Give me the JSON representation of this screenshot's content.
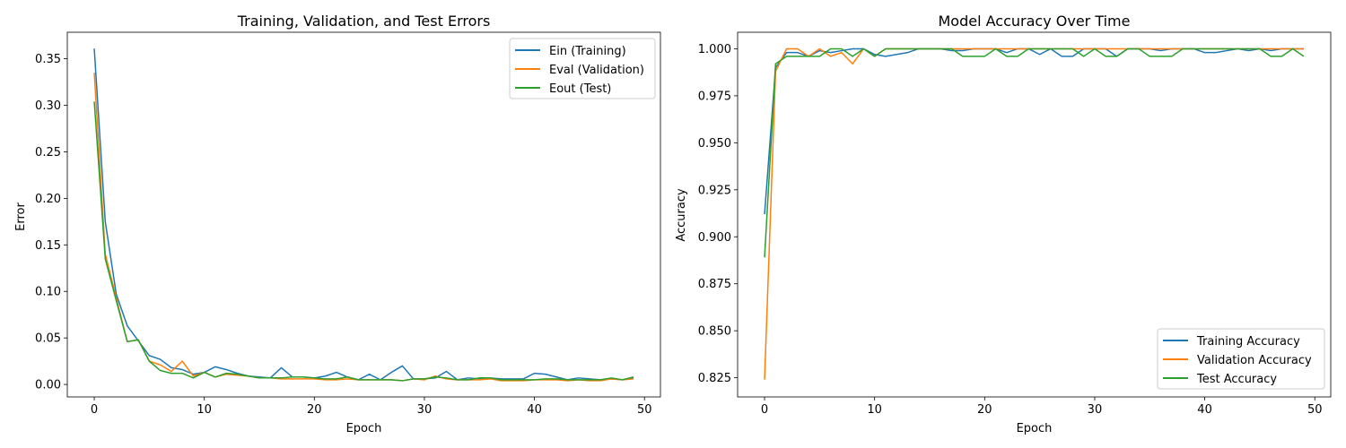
{
  "chart_data": [
    {
      "type": "line",
      "title": "Training, Validation, and Test Errors",
      "xlabel": "Epoch",
      "ylabel": "Error",
      "xlim": [
        -2.45,
        51.45
      ],
      "ylim": [
        -0.0134,
        0.3785
      ],
      "xticks": [
        0,
        10,
        20,
        30,
        40,
        50
      ],
      "xtick_labels": [
        "0",
        "10",
        "20",
        "30",
        "40",
        "50"
      ],
      "yticks": [
        0.0,
        0.05,
        0.1,
        0.15,
        0.2,
        0.25,
        0.3,
        0.35
      ],
      "ytick_labels": [
        "0.00",
        "0.05",
        "0.10",
        "0.15",
        "0.20",
        "0.25",
        "0.30",
        "0.35"
      ],
      "legend_position": "top-right",
      "grid": false,
      "x": [
        0,
        1,
        2,
        3,
        4,
        5,
        6,
        7,
        8,
        9,
        10,
        11,
        12,
        13,
        14,
        15,
        16,
        17,
        18,
        19,
        20,
        21,
        22,
        23,
        24,
        25,
        26,
        27,
        28,
        29,
        30,
        31,
        32,
        33,
        34,
        35,
        36,
        37,
        38,
        39,
        40,
        41,
        42,
        43,
        44,
        45,
        46,
        47,
        48,
        49
      ],
      "series": [
        {
          "name": "Ein (Training)",
          "color": "#1f77b4",
          "values": [
            0.361,
            0.175,
            0.097,
            0.063,
            0.047,
            0.031,
            0.027,
            0.018,
            0.016,
            0.011,
            0.013,
            0.019,
            0.016,
            0.012,
            0.009,
            0.008,
            0.007,
            0.018,
            0.008,
            0.008,
            0.007,
            0.009,
            0.013,
            0.008,
            0.005,
            0.011,
            0.005,
            0.013,
            0.02,
            0.006,
            0.006,
            0.007,
            0.014,
            0.005,
            0.007,
            0.006,
            0.007,
            0.006,
            0.006,
            0.006,
            0.012,
            0.011,
            0.008,
            0.005,
            0.007,
            0.006,
            0.005,
            0.006,
            0.005,
            0.007
          ]
        },
        {
          "name": "Eval (Validation)",
          "color": "#ff7f0e",
          "values": [
            0.335,
            0.14,
            0.093,
            0.046,
            0.048,
            0.025,
            0.021,
            0.014,
            0.025,
            0.009,
            0.013,
            0.008,
            0.011,
            0.01,
            0.009,
            0.007,
            0.007,
            0.006,
            0.006,
            0.006,
            0.006,
            0.005,
            0.005,
            0.006,
            0.005,
            0.005,
            0.005,
            0.005,
            0.004,
            0.006,
            0.005,
            0.009,
            0.006,
            0.005,
            0.005,
            0.005,
            0.006,
            0.004,
            0.004,
            0.004,
            0.005,
            0.005,
            0.005,
            0.004,
            0.005,
            0.004,
            0.004,
            0.006,
            0.005,
            0.006
          ]
        },
        {
          "name": "Eout (Test)",
          "color": "#2ca02c",
          "values": [
            0.304,
            0.135,
            0.09,
            0.046,
            0.048,
            0.025,
            0.015,
            0.012,
            0.012,
            0.007,
            0.013,
            0.008,
            0.012,
            0.011,
            0.009,
            0.007,
            0.007,
            0.007,
            0.008,
            0.008,
            0.007,
            0.006,
            0.006,
            0.008,
            0.005,
            0.005,
            0.005,
            0.005,
            0.004,
            0.006,
            0.006,
            0.008,
            0.007,
            0.005,
            0.005,
            0.007,
            0.007,
            0.005,
            0.005,
            0.005,
            0.005,
            0.006,
            0.006,
            0.005,
            0.005,
            0.005,
            0.005,
            0.007,
            0.005,
            0.008
          ]
        }
      ]
    },
    {
      "type": "line",
      "title": "Model Accuracy Over Time",
      "xlabel": "Epoch",
      "ylabel": "Accuracy",
      "xlim": [
        -2.45,
        51.45
      ],
      "ylim": [
        0.8148,
        1.0088
      ],
      "xticks": [
        0,
        10,
        20,
        30,
        40,
        50
      ],
      "xtick_labels": [
        "0",
        "10",
        "20",
        "30",
        "40",
        "50"
      ],
      "yticks": [
        0.825,
        0.85,
        0.875,
        0.9,
        0.925,
        0.95,
        0.975,
        1.0
      ],
      "ytick_labels": [
        "0.825",
        "0.850",
        "0.875",
        "0.900",
        "0.925",
        "0.950",
        "0.975",
        "1.000"
      ],
      "legend_position": "bottom-right",
      "grid": false,
      "x": [
        0,
        1,
        2,
        3,
        4,
        5,
        6,
        7,
        8,
        9,
        10,
        11,
        12,
        13,
        14,
        15,
        16,
        17,
        18,
        19,
        20,
        21,
        22,
        23,
        24,
        25,
        26,
        27,
        28,
        29,
        30,
        31,
        32,
        33,
        34,
        35,
        36,
        37,
        38,
        39,
        40,
        41,
        42,
        43,
        44,
        45,
        46,
        47,
        48,
        49
      ],
      "series": [
        {
          "name": "Training Accuracy",
          "color": "#1f77b4",
          "values": [
            0.912,
            0.99,
            0.998,
            0.998,
            0.996,
            0.999,
            0.998,
            0.999,
            1.0,
            1.0,
            0.997,
            0.996,
            0.997,
            0.998,
            1.0,
            1.0,
            1.0,
            0.999,
            0.999,
            1.0,
            1.0,
            1.0,
            0.998,
            1.0,
            1.0,
            0.997,
            1.0,
            0.996,
            0.996,
            1.0,
            1.0,
            1.0,
            0.996,
            1.0,
            1.0,
            1.0,
            0.999,
            1.0,
            1.0,
            1.0,
            0.998,
            0.998,
            0.999,
            1.0,
            0.999,
            1.0,
            0.999,
            1.0,
            1.0,
            1.0
          ]
        },
        {
          "name": "Validation Accuracy",
          "color": "#ff7f0e",
          "values": [
            0.824,
            0.988,
            1.0,
            1.0,
            0.996,
            1.0,
            0.996,
            0.998,
            0.992,
            1.0,
            0.996,
            1.0,
            1.0,
            1.0,
            1.0,
            1.0,
            1.0,
            1.0,
            1.0,
            1.0,
            1.0,
            1.0,
            1.0,
            1.0,
            1.0,
            1.0,
            1.0,
            1.0,
            1.0,
            1.0,
            1.0,
            1.0,
            1.0,
            1.0,
            1.0,
            1.0,
            1.0,
            1.0,
            1.0,
            1.0,
            1.0,
            1.0,
            1.0,
            1.0,
            1.0,
            1.0,
            1.0,
            1.0,
            1.0,
            1.0
          ]
        },
        {
          "name": "Test Accuracy",
          "color": "#2ca02c",
          "values": [
            0.889,
            0.992,
            0.996,
            0.996,
            0.996,
            0.996,
            1.0,
            1.0,
            0.996,
            1.0,
            0.996,
            1.0,
            1.0,
            1.0,
            1.0,
            1.0,
            1.0,
            1.0,
            0.996,
            0.996,
            0.996,
            1.0,
            0.996,
            0.996,
            1.0,
            1.0,
            1.0,
            1.0,
            1.0,
            0.996,
            1.0,
            0.996,
            0.996,
            1.0,
            1.0,
            0.996,
            0.996,
            0.996,
            1.0,
            1.0,
            1.0,
            1.0,
            1.0,
            1.0,
            1.0,
            1.0,
            0.996,
            0.996,
            1.0,
            0.996
          ]
        }
      ]
    }
  ]
}
